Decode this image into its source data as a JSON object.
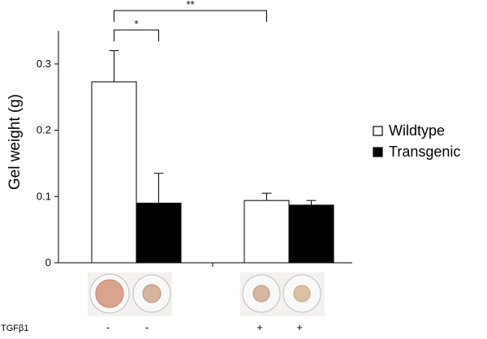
{
  "chart_data": {
    "type": "bar",
    "ylabel": "Gel weight (g)",
    "xlabel": "",
    "ylim": [
      0,
      0.35
    ],
    "yticks": [
      "0",
      "0.1",
      "0.2",
      "0.3"
    ],
    "ytick_values": [
      0,
      0.1,
      0.2,
      0.3
    ],
    "groups": [
      "TGFβ1 -",
      "TGFβ1 +"
    ],
    "series": [
      {
        "name": "Wildtype",
        "color": "#ffffff",
        "values": [
          0.273,
          0.094
        ],
        "errors": [
          0.047,
          0.011
        ]
      },
      {
        "name": "Transgenic",
        "color": "#000000",
        "values": [
          0.09,
          0.087
        ],
        "errors": [
          0.045,
          0.007
        ]
      }
    ],
    "significance": [
      {
        "label": "*",
        "from": "Wildtype TGFβ1 -",
        "to": "Transgenic TGFβ1 -"
      },
      {
        "label": "**",
        "from": "Wildtype TGFβ1 -",
        "to": "Wildtype TGFβ1 +"
      }
    ],
    "legend_position": "right",
    "grid": false
  },
  "treatment_row": {
    "label": "TGFβ1",
    "signs": [
      "-",
      "-",
      "+",
      "+"
    ]
  },
  "gel_images": {
    "description_colors": [
      "#d9a48c",
      "#d9b29c",
      "#d9b59e",
      "#dcc09f"
    ],
    "count": 4
  }
}
